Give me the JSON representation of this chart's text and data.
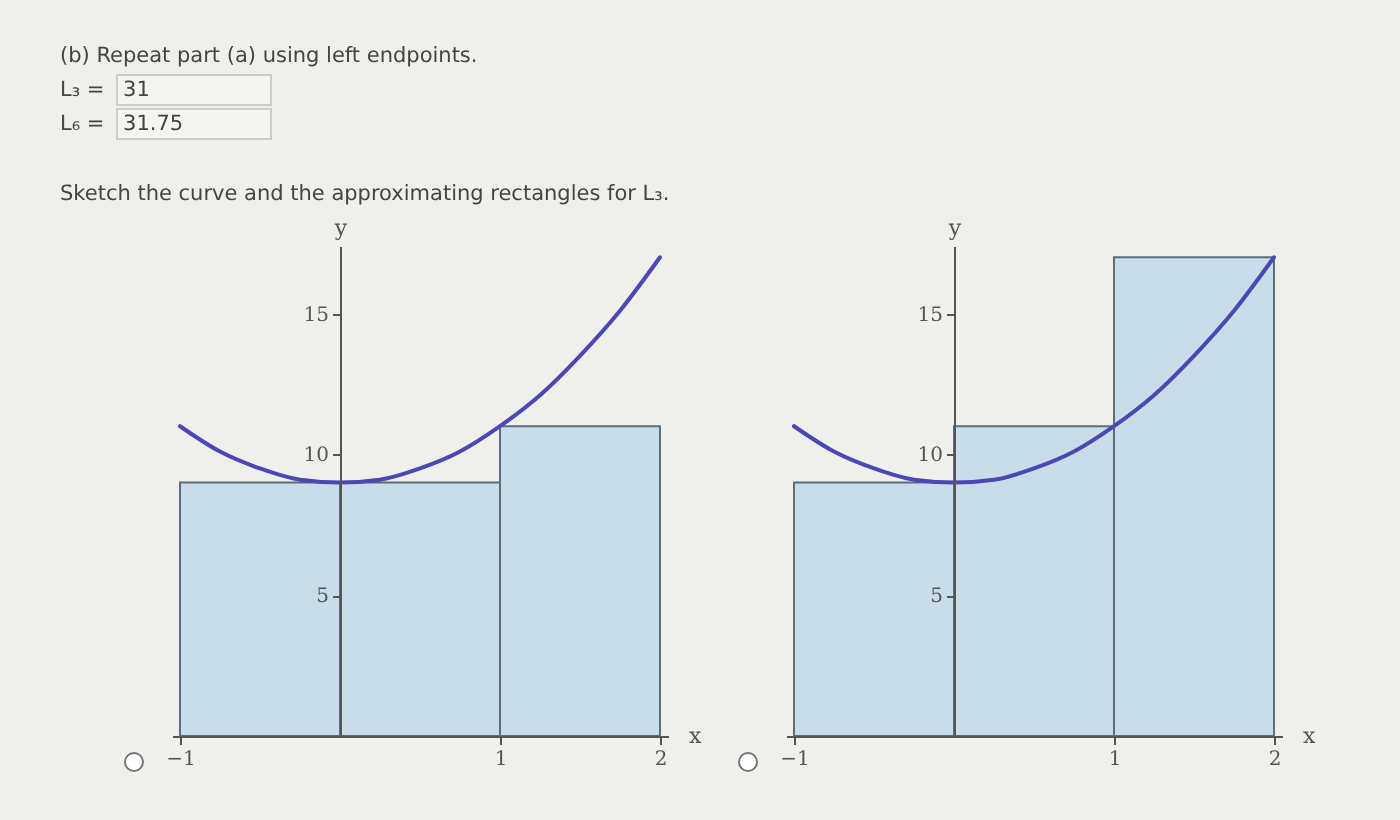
{
  "chart_data": [
    {
      "type": "other",
      "annotations": [
        "(b) Repeat part (a) using left endpoints.",
        "L₃ = 31",
        "L₆ = 31.75",
        "Sketch the curve and the approximating rectangles for L₃."
      ]
    },
    {
      "type": "bar",
      "xlabel": "x",
      "ylabel": "y",
      "xlim": [
        -1.05,
        2.05
      ],
      "ylim": [
        0,
        17.4
      ],
      "xticks": [
        -1,
        1,
        2
      ],
      "yticks": [
        5,
        10,
        15
      ],
      "grid": false,
      "series": [
        {
          "type": "bar",
          "color": "#c9dde8",
          "x": [
            -0.5,
            0.5,
            1.5
          ],
          "values": [
            9,
            9,
            11
          ]
        },
        {
          "type": "line",
          "color": "#4b47b5",
          "x": [
            -1,
            -0.75,
            -0.5,
            -0.25,
            0,
            0.25,
            0.5,
            0.75,
            1,
            1.25,
            1.5,
            1.75,
            2
          ],
          "values": [
            11,
            10.1,
            9.5,
            9.1,
            9,
            9.1,
            9.5,
            10.1,
            11,
            12.1,
            13.5,
            15.1,
            17
          ]
        }
      ]
    },
    {
      "type": "bar",
      "xlabel": "x",
      "ylabel": "y",
      "xlim": [
        -1.05,
        2.05
      ],
      "ylim": [
        0,
        17.4
      ],
      "xticks": [
        -1,
        1,
        2
      ],
      "yticks": [
        5,
        10,
        15
      ],
      "grid": false,
      "series": [
        {
          "type": "bar",
          "color": "#c9dde8",
          "x": [
            -0.5,
            0.5,
            1.5
          ],
          "values": [
            9,
            11,
            17
          ]
        },
        {
          "type": "line",
          "color": "#4b47b5",
          "x": [
            -1,
            -0.75,
            -0.5,
            -0.25,
            0,
            0.25,
            0.5,
            0.75,
            1,
            1.25,
            1.5,
            1.75,
            2
          ],
          "values": [
            11,
            10.1,
            9.5,
            9.1,
            9,
            9.1,
            9.5,
            10.1,
            11,
            12.1,
            13.5,
            15.1,
            17
          ]
        }
      ]
    }
  ]
}
